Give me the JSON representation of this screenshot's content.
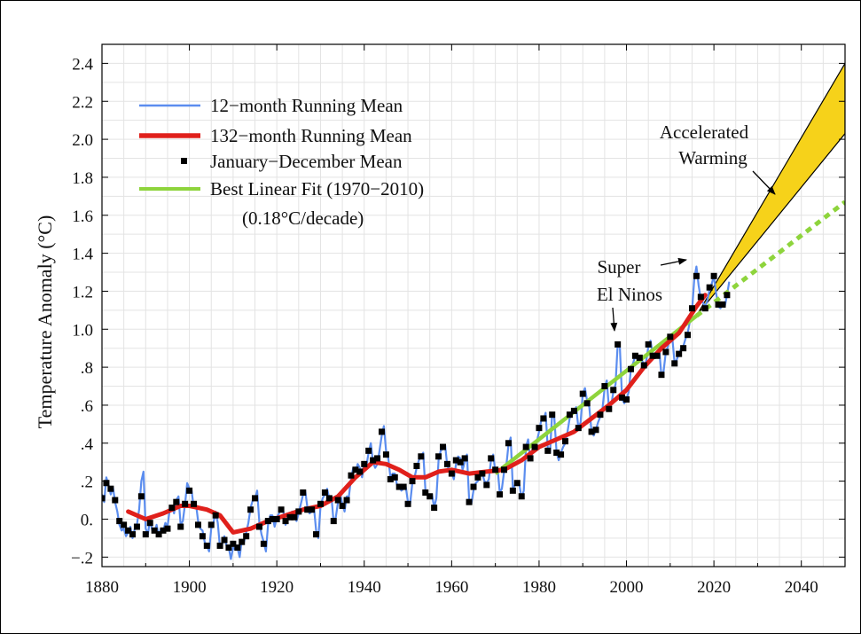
{
  "chart_data": {
    "type": "line",
    "title": "",
    "xlabel": "",
    "ylabel": "Temperature Anomaly (°C)",
    "xlim": [
      1880,
      2050
    ],
    "ylim": [
      -0.25,
      2.5
    ],
    "x_ticks": [
      "1880",
      "1900",
      "1920",
      "1940",
      "1960",
      "1980",
      "2000",
      "2020",
      "2040"
    ],
    "y_ticks": [
      {
        "v": 2.4,
        "label": "2.4"
      },
      {
        "v": 2.2,
        "label": "2.2"
      },
      {
        "v": 2.0,
        "label": "2.0"
      },
      {
        "v": 1.8,
        "label": "1.8"
      },
      {
        "v": 1.6,
        "label": "1.6"
      },
      {
        "v": 1.4,
        "label": "1.4"
      },
      {
        "v": 1.2,
        "label": "1.2"
      },
      {
        "v": 1.0,
        "label": "1.0"
      },
      {
        "v": 0.8,
        "label": ".8"
      },
      {
        "v": 0.6,
        "label": ".6"
      },
      {
        "v": 0.4,
        "label": ".4"
      },
      {
        "v": 0.2,
        "label": ".2"
      },
      {
        "v": 0.0,
        "label": "0."
      },
      {
        "v": -0.2,
        "label": "−.2"
      }
    ],
    "grid": true,
    "legend_position": "top-left",
    "legend": [
      {
        "label": "12−month Running Mean",
        "style": "thin-line",
        "color": "#5b8def"
      },
      {
        "label": "132−month Running Mean",
        "style": "thick-line",
        "color": "#e0201b"
      },
      {
        "label": "January−December Mean",
        "style": "square-marker",
        "color": "#000000"
      },
      {
        "label": "Best Linear Fit (1970−2010)",
        "style": "line",
        "color": "#8ed43c"
      }
    ],
    "legend_note": "(0.18°C/decade)",
    "annual_mean": {
      "x": [
        1880,
        1881,
        1882,
        1883,
        1884,
        1885,
        1886,
        1887,
        1888,
        1889,
        1890,
        1891,
        1892,
        1893,
        1894,
        1895,
        1896,
        1897,
        1898,
        1899,
        1900,
        1901,
        1902,
        1903,
        1904,
        1905,
        1906,
        1907,
        1908,
        1909,
        1910,
        1911,
        1912,
        1913,
        1914,
        1915,
        1916,
        1917,
        1918,
        1919,
        1920,
        1921,
        1922,
        1923,
        1924,
        1925,
        1926,
        1927,
        1928,
        1929,
        1930,
        1931,
        1932,
        1933,
        1934,
        1935,
        1936,
        1937,
        1938,
        1939,
        1940,
        1941,
        1942,
        1943,
        1944,
        1945,
        1946,
        1947,
        1948,
        1949,
        1950,
        1951,
        1952,
        1953,
        1954,
        1955,
        1956,
        1957,
        1958,
        1959,
        1960,
        1961,
        1962,
        1963,
        1964,
        1965,
        1966,
        1967,
        1968,
        1969,
        1970,
        1971,
        1972,
        1973,
        1974,
        1975,
        1976,
        1977,
        1978,
        1979,
        1980,
        1981,
        1982,
        1983,
        1984,
        1985,
        1986,
        1987,
        1988,
        1989,
        1990,
        1991,
        1992,
        1993,
        1994,
        1995,
        1996,
        1997,
        1998,
        1999,
        2000,
        2001,
        2002,
        2003,
        2004,
        2005,
        2006,
        2007,
        2008,
        2009,
        2010,
        2011,
        2012,
        2013,
        2014,
        2015,
        2016,
        2017,
        2018,
        2019,
        2020,
        2021,
        2022,
        2023
      ],
      "y": [
        0.11,
        0.19,
        0.16,
        0.1,
        -0.01,
        -0.03,
        -0.06,
        -0.08,
        -0.04,
        0.12,
        -0.08,
        -0.02,
        -0.06,
        -0.08,
        -0.06,
        -0.05,
        0.06,
        0.09,
        -0.04,
        0.08,
        0.15,
        0.08,
        -0.03,
        -0.09,
        -0.14,
        -0.03,
        0.02,
        -0.14,
        -0.11,
        -0.15,
        -0.13,
        -0.15,
        -0.12,
        -0.09,
        0.05,
        0.11,
        -0.04,
        -0.13,
        -0.01,
        0.0,
        0.0,
        0.05,
        -0.01,
        0.01,
        0.01,
        0.04,
        0.14,
        0.05,
        0.05,
        -0.08,
        0.08,
        0.14,
        0.11,
        -0.01,
        0.1,
        0.07,
        0.1,
        0.23,
        0.26,
        0.25,
        0.29,
        0.36,
        0.31,
        0.32,
        0.46,
        0.34,
        0.21,
        0.22,
        0.17,
        0.17,
        0.08,
        0.2,
        0.28,
        0.33,
        0.14,
        0.12,
        0.06,
        0.33,
        0.38,
        0.29,
        0.24,
        0.31,
        0.3,
        0.32,
        0.09,
        0.17,
        0.22,
        0.24,
        0.18,
        0.32,
        0.26,
        0.13,
        0.26,
        0.4,
        0.15,
        0.19,
        0.12,
        0.38,
        0.32,
        0.38,
        0.48,
        0.53,
        0.36,
        0.55,
        0.35,
        0.34,
        0.41,
        0.55,
        0.57,
        0.48,
        0.66,
        0.61,
        0.46,
        0.47,
        0.55,
        0.7,
        0.58,
        0.68,
        0.92,
        0.64,
        0.63,
        0.79,
        0.86,
        0.85,
        0.81,
        0.92,
        0.86,
        0.86,
        0.76,
        0.88,
        0.96,
        0.82,
        0.87,
        0.9,
        0.97,
        1.11,
        1.28,
        1.17,
        1.11,
        1.22,
        1.28,
        1.13,
        1.13,
        1.18
      ]
    },
    "running_12mo": {
      "x": [
        1880,
        1880.5,
        1881,
        1881.5,
        1882,
        1882.5,
        1883,
        1883.5,
        1884,
        1884.5,
        1885,
        1885.5,
        1886,
        1886.5,
        1887,
        1887.5,
        1888,
        1888.5,
        1889,
        1889.5,
        1890,
        1890.5,
        1891,
        1891.5,
        1892,
        1892.5,
        1893,
        1893.5,
        1894,
        1894.5,
        1895,
        1895.5,
        1896,
        1896.5,
        1897,
        1897.5,
        1898,
        1898.5,
        1899,
        1899.5,
        1900,
        1900.5,
        1901,
        1901.5,
        1902,
        1902.5,
        1903,
        1903.5,
        1904,
        1904.5,
        1905,
        1905.5,
        1906,
        1906.5,
        1907,
        1907.5,
        1908,
        1908.5,
        1909,
        1909.5,
        1910,
        1910.5,
        1911,
        1911.5,
        1912,
        1912.5,
        1913,
        1913.5,
        1914,
        1914.5,
        1915,
        1915.5,
        1916,
        1916.5,
        1917,
        1917.5,
        1918,
        1918.5,
        1919,
        1919.5,
        1920,
        1920.5,
        1921,
        1921.5,
        1922,
        1922.5,
        1923,
        1923.5,
        1924,
        1924.5,
        1925,
        1925.5,
        1926,
        1926.5,
        1927,
        1927.5,
        1928,
        1928.5,
        1929,
        1929.5,
        1930,
        1930.5,
        1931,
        1931.5,
        1932,
        1932.5,
        1933,
        1933.5,
        1934,
        1934.5,
        1935,
        1935.5,
        1936,
        1936.5,
        1937,
        1937.5,
        1938,
        1938.5,
        1939,
        1939.5,
        1940,
        1940.5,
        1941,
        1941.5,
        1942,
        1942.5,
        1943,
        1943.5,
        1944,
        1944.5,
        1945,
        1945.5,
        1946,
        1946.5,
        1947,
        1947.5,
        1948,
        1948.5,
        1949,
        1949.5,
        1950,
        1950.5,
        1951,
        1951.5,
        1952,
        1952.5,
        1953,
        1953.5,
        1954,
        1954.5,
        1955,
        1955.5,
        1956,
        1956.5,
        1957,
        1957.5,
        1958,
        1958.5,
        1959,
        1959.5,
        1960,
        1960.5,
        1961,
        1961.5,
        1962,
        1962.5,
        1963,
        1963.5,
        1964,
        1964.5,
        1965,
        1965.5,
        1966,
        1966.5,
        1967,
        1967.5,
        1968,
        1968.5,
        1969,
        1969.5,
        1970,
        1970.5,
        1971,
        1971.5,
        1972,
        1972.5,
        1973,
        1973.5,
        1974,
        1974.5,
        1975,
        1975.5,
        1976,
        1976.5,
        1977,
        1977.5,
        1978,
        1978.5,
        1979,
        1979.5,
        1980,
        1980.5,
        1981,
        1981.5,
        1982,
        1982.5,
        1983,
        1983.5,
        1984,
        1984.5,
        1985,
        1985.5,
        1986,
        1986.5,
        1987,
        1987.5,
        1988,
        1988.5,
        1989,
        1989.5,
        1990,
        1990.5,
        1991,
        1991.5,
        1992,
        1992.5,
        1993,
        1993.5,
        1994,
        1994.5,
        1995,
        1995.5,
        1996,
        1996.5,
        1997,
        1997.5,
        1998,
        1998.5,
        1999,
        1999.5,
        2000,
        2000.5,
        2001,
        2001.5,
        2002,
        2002.5,
        2003,
        2003.5,
        2004,
        2004.5,
        2005,
        2005.5,
        2006,
        2006.5,
        2007,
        2007.5,
        2008,
        2008.5,
        2009,
        2009.5,
        2010,
        2010.5,
        2011,
        2011.5,
        2012,
        2012.5,
        2013,
        2013.5,
        2014,
        2014.5,
        2015,
        2015.5,
        2016,
        2016.5,
        2017,
        2017.5,
        2018,
        2018.5,
        2019,
        2019.5,
        2020,
        2020.5,
        2021,
        2021.5,
        2022,
        2022.5,
        2023,
        2023.5
      ],
      "y": [
        0.13,
        0.09,
        0.22,
        0.18,
        0.13,
        0.17,
        0.09,
        0.04,
        -0.03,
        -0.06,
        -0.05,
        -0.09,
        -0.07,
        -0.04,
        -0.1,
        -0.05,
        -0.03,
        0.05,
        0.2,
        0.25,
        -0.05,
        -0.08,
        0.0,
        -0.06,
        -0.07,
        -0.03,
        -0.09,
        -0.05,
        -0.06,
        -0.02,
        -0.04,
        0.05,
        0.07,
        0.03,
        0.1,
        0.12,
        -0.03,
        -0.01,
        0.08,
        0.19,
        0.16,
        0.15,
        0.06,
        0.08,
        -0.01,
        -0.05,
        -0.06,
        -0.12,
        -0.14,
        -0.17,
        -0.05,
        -0.02,
        0.04,
        -0.02,
        -0.15,
        -0.13,
        -0.09,
        -0.14,
        -0.15,
        -0.21,
        -0.15,
        -0.16,
        -0.15,
        -0.2,
        -0.11,
        -0.12,
        -0.07,
        -0.02,
        0.06,
        0.1,
        0.1,
        0.15,
        -0.02,
        -0.08,
        -0.12,
        -0.17,
        -0.03,
        0.02,
        0.02,
        -0.04,
        0.01,
        0.03,
        0.06,
        0.04,
        -0.03,
        0.0,
        0.02,
        0.04,
        0.02,
        -0.01,
        0.03,
        0.08,
        0.13,
        0.15,
        0.06,
        0.03,
        0.04,
        0.06,
        -0.06,
        -0.1,
        0.07,
        0.11,
        0.13,
        0.16,
        0.11,
        0.12,
        -0.02,
        0.01,
        0.09,
        0.13,
        0.08,
        0.04,
        0.12,
        0.12,
        0.22,
        0.27,
        0.25,
        0.29,
        0.27,
        0.22,
        0.3,
        0.28,
        0.35,
        0.4,
        0.3,
        0.27,
        0.29,
        0.36,
        0.44,
        0.49,
        0.36,
        0.32,
        0.22,
        0.24,
        0.24,
        0.18,
        0.17,
        0.15,
        0.16,
        0.17,
        0.09,
        0.08,
        0.19,
        0.22,
        0.27,
        0.31,
        0.33,
        0.35,
        0.15,
        0.13,
        0.11,
        0.13,
        0.06,
        0.11,
        0.31,
        0.36,
        0.37,
        0.39,
        0.28,
        0.26,
        0.25,
        0.21,
        0.29,
        0.33,
        0.32,
        0.26,
        0.3,
        0.34,
        0.1,
        0.08,
        0.15,
        0.19,
        0.2,
        0.24,
        0.24,
        0.2,
        0.19,
        0.21,
        0.31,
        0.34,
        0.25,
        0.27,
        0.14,
        0.16,
        0.25,
        0.28,
        0.39,
        0.43,
        0.16,
        0.18,
        0.2,
        0.18,
        0.11,
        0.15,
        0.38,
        0.42,
        0.31,
        0.35,
        0.39,
        0.41,
        0.46,
        0.52,
        0.52,
        0.56,
        0.37,
        0.35,
        0.56,
        0.53,
        0.35,
        0.31,
        0.35,
        0.38,
        0.4,
        0.46,
        0.53,
        0.57,
        0.57,
        0.59,
        0.48,
        0.51,
        0.66,
        0.69,
        0.62,
        0.59,
        0.46,
        0.44,
        0.47,
        0.51,
        0.54,
        0.58,
        0.69,
        0.73,
        0.58,
        0.6,
        0.67,
        0.71,
        0.93,
        0.9,
        0.63,
        0.61,
        0.63,
        0.67,
        0.79,
        0.82,
        0.86,
        0.84,
        0.85,
        0.84,
        0.81,
        0.83,
        0.91,
        0.94,
        0.87,
        0.85,
        0.86,
        0.89,
        0.75,
        0.78,
        0.88,
        0.91,
        0.97,
        0.95,
        0.82,
        0.84,
        0.87,
        0.9,
        0.91,
        0.95,
        0.98,
        1.04,
        1.1,
        1.26,
        1.33,
        1.23,
        1.16,
        1.14,
        1.12,
        1.15,
        1.21,
        1.24,
        1.28,
        1.19,
        1.12,
        1.11,
        1.13,
        1.12,
        1.18,
        1.25
      ]
    },
    "running_132mo": {
      "x": [
        1886,
        1890,
        1894,
        1898,
        1900,
        1904,
        1907,
        1910,
        1914,
        1918,
        1922,
        1926,
        1930,
        1934,
        1938,
        1942,
        1945,
        1948,
        1951,
        1954,
        1957,
        1960,
        1964,
        1968,
        1972,
        1976,
        1980,
        1984,
        1988,
        1992,
        1996,
        2000,
        2004,
        2008,
        2012,
        2016,
        2018
      ],
      "y": [
        0.04,
        0.0,
        0.03,
        0.07,
        0.07,
        0.05,
        0.02,
        -0.07,
        -0.05,
        -0.01,
        0.02,
        0.05,
        0.07,
        0.12,
        0.22,
        0.3,
        0.29,
        0.26,
        0.22,
        0.22,
        0.25,
        0.26,
        0.24,
        0.25,
        0.26,
        0.31,
        0.38,
        0.42,
        0.46,
        0.53,
        0.6,
        0.68,
        0.8,
        0.9,
        0.98,
        1.12,
        1.18
      ]
    },
    "linear_fit": {
      "label": "Best Linear Fit (1970−2010)",
      "rate": "0.18°C/decade",
      "solid": [
        [
          1970,
          0.24
        ],
        [
          2016,
          1.07
        ]
      ],
      "dashed": [
        [
          2016,
          1.07
        ],
        [
          2050,
          1.67
        ]
      ]
    },
    "accelerated_band": {
      "upper": [
        [
          2016,
          1.07
        ],
        [
          2050,
          2.4
        ]
      ],
      "lower": [
        [
          2016,
          1.07
        ],
        [
          2050,
          2.03
        ]
      ],
      "color": "#f6d21a"
    },
    "annotations": [
      {
        "id": "super-el-ninos",
        "lines": [
          "Super",
          "El Ninos"
        ]
      },
      {
        "id": "accelerated-warming",
        "lines": [
          "Accelerated",
          "Warming"
        ]
      }
    ]
  }
}
